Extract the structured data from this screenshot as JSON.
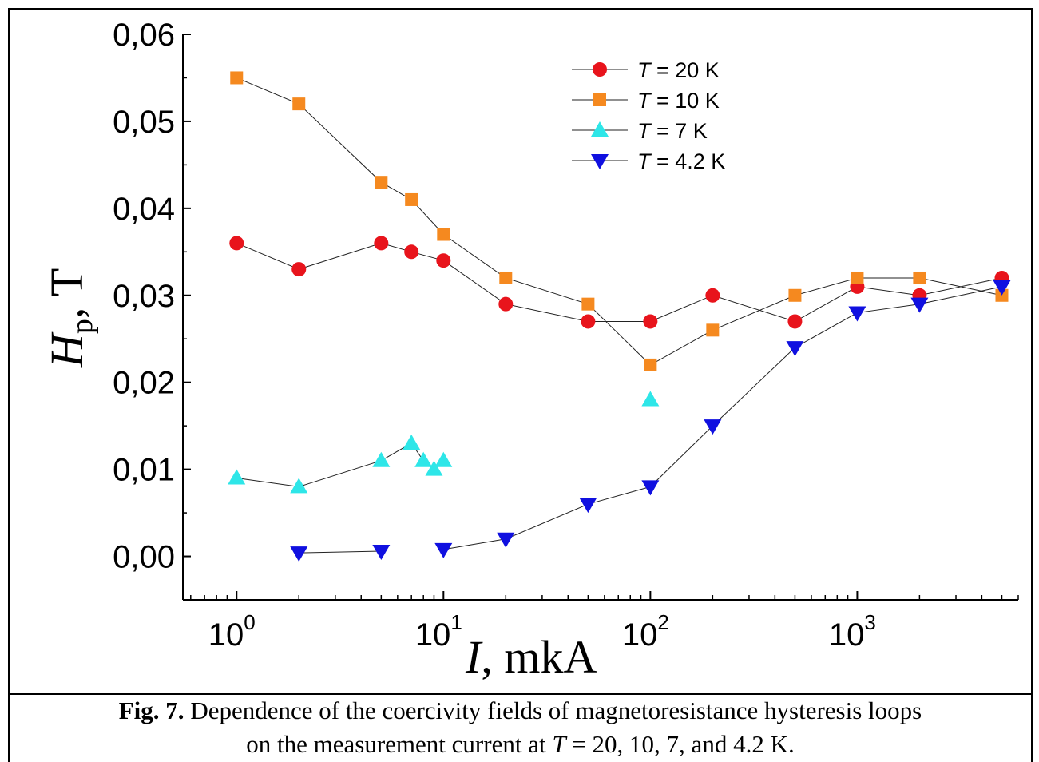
{
  "chart_data": {
    "type": "scatter",
    "xscale": "log",
    "xlabel_var": "I",
    "xlabel_unit": ", mkA",
    "ylabel_var": "H",
    "ylabel_sub": "p",
    "ylabel_unit": ", T",
    "xlim": [
      0.55,
      6000
    ],
    "ylim": [
      -0.005,
      0.06
    ],
    "yticks": [
      "0,00",
      "0,01",
      "0,02",
      "0,03",
      "0,04",
      "0,05",
      "0,06"
    ],
    "ytick_values": [
      0,
      0.01,
      0.02,
      0.03,
      0.04,
      0.05,
      0.06
    ],
    "xticks": [
      {
        "value": 1,
        "base": "10",
        "exp": "0"
      },
      {
        "value": 10,
        "base": "10",
        "exp": "1"
      },
      {
        "value": 100,
        "base": "10",
        "exp": "2"
      },
      {
        "value": 1000,
        "base": "10",
        "exp": "3"
      }
    ],
    "legend_position": "top-right",
    "series": [
      {
        "name_var": "T",
        "name_rest": " = 20 K",
        "marker": "circle",
        "color": "#e8141c",
        "x": [
          1,
          2,
          5,
          7,
          10,
          20,
          50,
          100,
          200,
          500,
          1000,
          2000,
          5000
        ],
        "y": [
          0.036,
          0.033,
          0.036,
          0.035,
          0.034,
          0.029,
          0.027,
          0.027,
          0.03,
          0.027,
          0.031,
          0.03,
          0.032
        ]
      },
      {
        "name_var": "T",
        "name_rest": " = 10 K",
        "marker": "square",
        "color": "#f5891f",
        "x": [
          1,
          2,
          5,
          7,
          10,
          20,
          50,
          100,
          200,
          500,
          1000,
          2000,
          5000
        ],
        "y": [
          0.055,
          0.052,
          0.043,
          0.041,
          0.037,
          0.032,
          0.029,
          0.022,
          0.026,
          0.03,
          0.032,
          0.032,
          0.03
        ]
      },
      {
        "name_var": "T",
        "name_rest": " = 7 K",
        "marker": "triangle-up",
        "color": "#2ee6e8",
        "x": [
          1,
          2,
          5,
          7,
          8,
          9,
          10,
          100
        ],
        "y": [
          0.009,
          0.008,
          0.011,
          0.013,
          0.011,
          0.01,
          0.011,
          0.018
        ],
        "segments": [
          [
            0,
            6
          ],
          [
            7,
            7
          ]
        ]
      },
      {
        "name_var": "T",
        "name_rest": " = 4.2 K",
        "marker": "triangle-down",
        "color": "#1010e0",
        "x": [
          2,
          5,
          10,
          20,
          50,
          100,
          200,
          500,
          1000,
          2000,
          5000
        ],
        "y": [
          0.0004,
          0.0006,
          0.0008,
          0.002,
          0.006,
          0.008,
          0.015,
          0.024,
          0.028,
          0.029,
          0.031
        ],
        "segments": [
          [
            0,
            1
          ],
          [
            2,
            10
          ]
        ]
      }
    ]
  },
  "caption": {
    "label": "Fig. 7.",
    "line1_rest": " Dependence of the coercivity fields of magnetoresistance hysteresis loops",
    "line2_start": "on the measurement current at ",
    "line2_var": "T",
    "line2_end": " = 20, 10, 7, and 4.2 K."
  }
}
